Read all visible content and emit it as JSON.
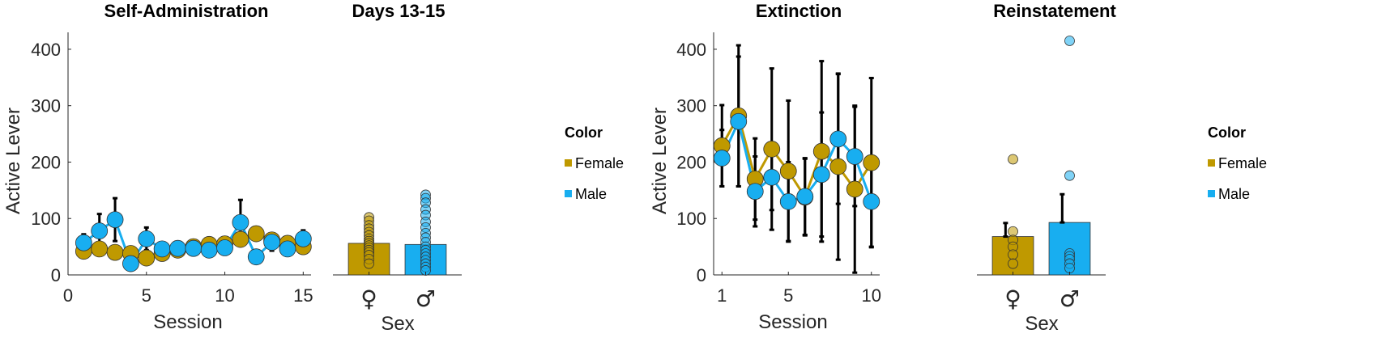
{
  "colors": {
    "female": "#bf9900",
    "male": "#18aef0",
    "errorbar": "#000000"
  },
  "sex_symbols": {
    "female": "♀",
    "male": "♂"
  },
  "legend": {
    "title": "Color",
    "female": "Female",
    "male": "Male"
  },
  "chart_data": [
    {
      "id": "self_administration",
      "type": "line",
      "title": "Self-Administration",
      "xlabel": "Session",
      "ylabel": "Active Lever",
      "xlim": [
        0,
        15.5
      ],
      "ylim": [
        0,
        430
      ],
      "xticks": [
        0,
        5,
        10,
        15
      ],
      "yticks": [
        0,
        100,
        200,
        300,
        400
      ],
      "x": [
        1,
        2,
        3,
        4,
        5,
        6,
        7,
        8,
        9,
        10,
        11,
        12,
        13,
        14,
        15
      ],
      "series": [
        {
          "name": "Female",
          "values": [
            42,
            46,
            40,
            38,
            30,
            38,
            44,
            50,
            54,
            55,
            63,
            73,
            62,
            56,
            50
          ],
          "errors": [
            12,
            10,
            10,
            8,
            8,
            8,
            8,
            8,
            12,
            12,
            10,
            10,
            10,
            10,
            10
          ]
        },
        {
          "name": "Male",
          "values": [
            57,
            78,
            98,
            20,
            64,
            46,
            47,
            47,
            44,
            48,
            93,
            32,
            58,
            46,
            64
          ],
          "errors": [
            15,
            30,
            38,
            8,
            20,
            8,
            8,
            8,
            8,
            10,
            40,
            10,
            15,
            12,
            15
          ]
        }
      ]
    },
    {
      "id": "days_13_15",
      "type": "bar",
      "title": "Days 13-15",
      "xlabel": "Sex",
      "ylim": [
        0,
        430
      ],
      "categories": [
        "Female",
        "Male"
      ],
      "values": [
        56,
        54
      ],
      "points": {
        "Female": [
          102,
          96,
          88,
          82,
          76,
          70,
          64,
          60,
          56,
          52,
          48,
          44,
          40,
          35,
          28,
          20
        ],
        "Male": [
          142,
          136,
          128,
          116,
          106,
          94,
          84,
          74,
          66,
          58,
          50,
          44,
          38,
          32,
          26,
          20,
          14,
          8
        ]
      }
    },
    {
      "id": "extinction",
      "type": "line",
      "title": "Extinction",
      "xlabel": "Session",
      "ylabel": "Active Lever",
      "xlim": [
        0.5,
        10.5
      ],
      "ylim": [
        0,
        430
      ],
      "xticks": [
        1,
        5,
        10
      ],
      "yticks": [
        0,
        100,
        200,
        300,
        400
      ],
      "x": [
        1,
        2,
        3,
        4,
        5,
        6,
        7,
        8,
        9,
        10
      ],
      "series": [
        {
          "name": "Female",
          "values": [
            229,
            282,
            170,
            223,
            184,
            138,
            219,
            192,
            152,
            199
          ],
          "errors": [
            72,
            125,
            72,
            143,
            125,
            68,
            160,
            165,
            148,
            150
          ]
        },
        {
          "name": "Male",
          "values": [
            207,
            272,
            148,
            173,
            130,
            139,
            178,
            241,
            210,
            130
          ],
          "errors": [
            50,
            115,
            62,
            58,
            70,
            68,
            110,
            115,
            88,
            80
          ]
        }
      ]
    },
    {
      "id": "reinstatement",
      "type": "bar",
      "title": "Reinstatement",
      "xlabel": "Sex",
      "ylim": [
        0,
        430
      ],
      "categories": [
        "Female",
        "Male"
      ],
      "values": [
        68,
        93
      ],
      "errors": [
        24,
        50
      ],
      "points": {
        "Female": [
          205,
          77,
          62,
          50,
          36,
          20
        ],
        "Male": [
          415,
          176,
          38,
          33,
          28,
          20,
          12
        ]
      }
    }
  ]
}
